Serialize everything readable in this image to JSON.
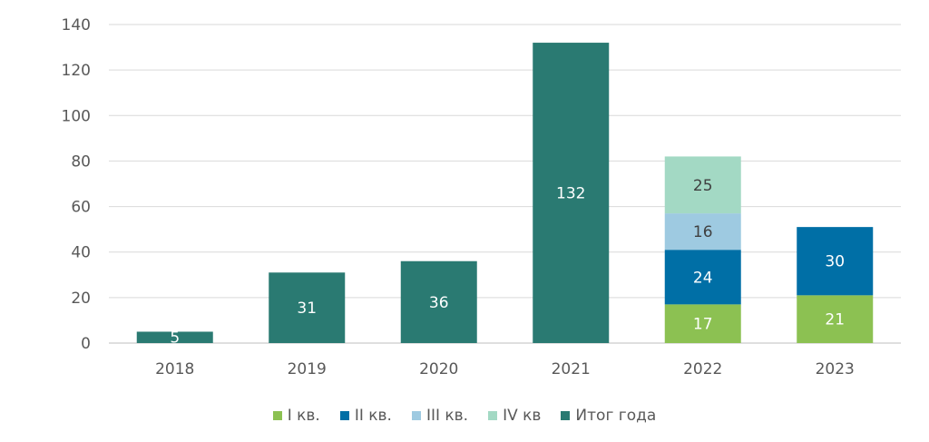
{
  "chart_data": {
    "type": "bar",
    "stacked": true,
    "title": "",
    "xlabel": "",
    "ylabel": "",
    "categories": [
      "2018",
      "2019",
      "2020",
      "2021",
      "2022",
      "2023"
    ],
    "ylim": [
      0,
      140
    ],
    "yticks": [
      0,
      20,
      40,
      60,
      80,
      100,
      120,
      140
    ],
    "grid": true,
    "legend_position": "bottom",
    "series": [
      {
        "name": "I кв.",
        "color": "#8CC152",
        "label_color": "#ffffff",
        "values": [
          null,
          null,
          null,
          null,
          17,
          21
        ]
      },
      {
        "name": "II кв.",
        "color": "#006FA6",
        "label_color": "#ffffff",
        "values": [
          null,
          null,
          null,
          null,
          24,
          30
        ]
      },
      {
        "name": "III кв.",
        "color": "#9ECAE1",
        "label_color": "#404040",
        "values": [
          null,
          null,
          null,
          null,
          16,
          null
        ]
      },
      {
        "name": "IV кв",
        "color": "#A3D9C4",
        "label_color": "#404040",
        "values": [
          null,
          null,
          null,
          null,
          25,
          null
        ]
      },
      {
        "name": "Итог года",
        "color": "#2A7A72",
        "label_color": "#ffffff",
        "values": [
          5,
          31,
          36,
          132,
          null,
          null
        ]
      }
    ]
  }
}
